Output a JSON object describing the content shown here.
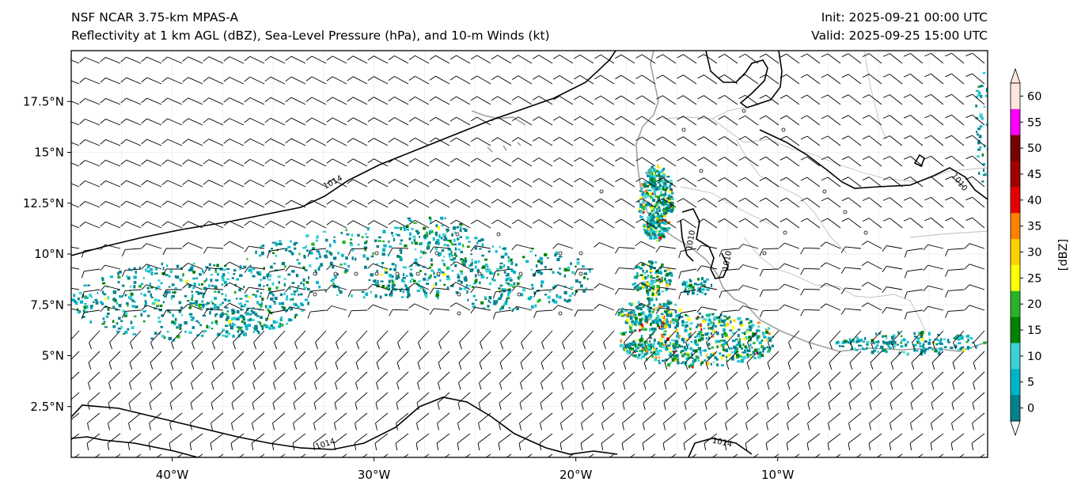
{
  "header": {
    "model": "NSF NCAR 3.75-km MPAS-A",
    "fields": "Reflectivity at 1 km AGL (dBZ), Sea-Level Pressure (hPa), and 10-m Winds (kt)",
    "init": "Init: 2025-09-21 00:00 UTC",
    "valid": "Valid: 2025-09-25 15:00 UTC"
  },
  "map": {
    "lon_range": [
      -45,
      0.4
    ],
    "lat_range": [
      0,
      20
    ],
    "lon_ticks": [
      {
        "value": -40,
        "label": "40°W"
      },
      {
        "value": -30,
        "label": "30°W"
      },
      {
        "value": -20,
        "label": "20°W"
      },
      {
        "value": -10,
        "label": "10°W"
      }
    ],
    "lat_ticks": [
      {
        "value": 2.5,
        "label": "2.5°N"
      },
      {
        "value": 5,
        "label": "5°N"
      },
      {
        "value": 7.5,
        "label": "7.5°N"
      },
      {
        "value": 10,
        "label": "10°N"
      },
      {
        "value": 12.5,
        "label": "12.5°N"
      },
      {
        "value": 15,
        "label": "15°N"
      },
      {
        "value": 17.5,
        "label": "17.5°N"
      }
    ],
    "isobar_labels": [
      "1014",
      "1014",
      "1014",
      "1010",
      "1010",
      "1010"
    ],
    "coast_color": "#a0a0a0",
    "isobar_color": "#000000"
  },
  "colorbar": {
    "label": "[dBZ]",
    "ticks": [
      "0",
      "5",
      "10",
      "15",
      "20",
      "25",
      "30",
      "35",
      "40",
      "45",
      "50",
      "55",
      "60"
    ],
    "colors": [
      "#ffffff",
      "#00828c",
      "#00b4c8",
      "#3cd2d2",
      "#008200",
      "#28b428",
      "#ffff00",
      "#fad200",
      "#ff8200",
      "#e60000",
      "#a00000",
      "#780000",
      "#ff00ff",
      "#ffe6dc"
    ]
  }
}
